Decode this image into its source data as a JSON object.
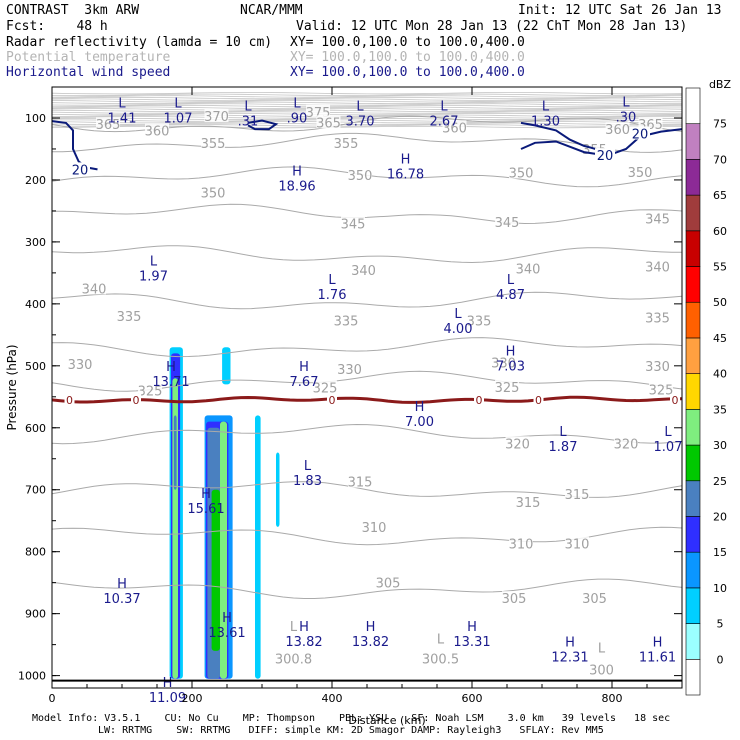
{
  "header": {
    "title_left": "CONTRAST  3km ARW",
    "title_center": "NCAR/MMM",
    "init": "Init: 12 UTC Sat 26 Jan 13",
    "fcst": "Fcst:    48 h",
    "valid": "Valid: 12 UTC Mon 28 Jan 13 (22 ChT Mon 28 Jan 13)",
    "fields": [
      {
        "label": "Radar reflectivity (lamda = 10 cm)",
        "xy": "XY= 100.0,100.0 to 100.0,400.0",
        "color": "#000000"
      },
      {
        "label": "Potential temperature",
        "xy": "XY= 100.0,100.0 to 100.0,400.0",
        "color": "#b4b4b4"
      },
      {
        "label": "Horizontal wind speed",
        "xy": "XY= 100.0,100.0 to 100.0,400.0",
        "color": "#1a1a8c"
      }
    ]
  },
  "footer": {
    "line1": "Model Info: V3.5.1    CU: No Cu    MP: Thompson    PBL: YSU    SF: Noah LSM    3.0 km   39 levels   18 sec",
    "line2": "LW: RRTMG    SW: RRTMG   DIFF: simple KM: 2D Smagor DAMP: Rayleigh3   SFLAY: Rev MM5"
  },
  "chart_data": {
    "type": "cross-section",
    "xlabel": "Distance (km)",
    "ylabel": "Pressure (hPa)",
    "xlim": [
      0,
      900
    ],
    "ylim": [
      1020,
      50
    ],
    "x_ticks": [
      0,
      200,
      400,
      600,
      800
    ],
    "y_ticks": [
      100,
      200,
      300,
      400,
      500,
      600,
      700,
      800,
      900,
      1000
    ],
    "colorbar": {
      "title": "dBZ",
      "levels": [
        0,
        5,
        10,
        15,
        20,
        25,
        30,
        35,
        40,
        45,
        50,
        55,
        60,
        65,
        70,
        75
      ],
      "colors": [
        "#ffffff",
        "#9bffff",
        "#00cfff",
        "#0a96ff",
        "#2f2fff",
        "#4a80c0",
        "#00c800",
        "#7fee7f",
        "#ffd700",
        "#ffa040",
        "#ff6000",
        "#ff0000",
        "#c80000",
        "#a03c3c",
        "#8c2a96",
        "#c080c0",
        "#ffffff"
      ]
    },
    "theta_contours": [
      {
        "value": "360",
        "p": 110
      },
      {
        "value": "355",
        "p": 140
      },
      {
        "value": "350",
        "p": 195
      },
      {
        "value": "345",
        "p": 255
      },
      {
        "value": "340",
        "p": 320
      },
      {
        "value": "335",
        "p": 395
      },
      {
        "value": "330",
        "p": 470
      },
      {
        "value": "325",
        "p": 525
      },
      {
        "value": "320",
        "p": 610
      },
      {
        "value": "315",
        "p": 700
      },
      {
        "value": "310",
        "p": 775
      },
      {
        "value": "305",
        "p": 860
      }
    ],
    "theta_labels": [
      {
        "text": "365",
        "x": 80,
        "p": 110
      },
      {
        "text": "360",
        "x": 150,
        "p": 120
      },
      {
        "text": "370",
        "x": 235,
        "p": 97
      },
      {
        "text": "375",
        "x": 380,
        "p": 90
      },
      {
        "text": "365",
        "x": 395,
        "p": 107
      },
      {
        "text": "360",
        "x": 575,
        "p": 115
      },
      {
        "text": "365",
        "x": 855,
        "p": 110
      },
      {
        "text": "360",
        "x": 808,
        "p": 118
      },
      {
        "text": "355",
        "x": 230,
        "p": 140
      },
      {
        "text": "355",
        "x": 420,
        "p": 140
      },
      {
        "text": "355",
        "x": 775,
        "p": 150
      },
      {
        "text": "350",
        "x": 230,
        "p": 220
      },
      {
        "text": "350",
        "x": 440,
        "p": 192
      },
      {
        "text": "350",
        "x": 670,
        "p": 188
      },
      {
        "text": "350",
        "x": 840,
        "p": 187
      },
      {
        "text": "345",
        "x": 430,
        "p": 270
      },
      {
        "text": "345",
        "x": 650,
        "p": 268
      },
      {
        "text": "345",
        "x": 865,
        "p": 262
      },
      {
        "text": "340",
        "x": 60,
        "p": 375
      },
      {
        "text": "340",
        "x": 445,
        "p": 345
      },
      {
        "text": "340",
        "x": 680,
        "p": 343
      },
      {
        "text": "340",
        "x": 865,
        "p": 340
      },
      {
        "text": "335",
        "x": 110,
        "p": 420
      },
      {
        "text": "335",
        "x": 420,
        "p": 427
      },
      {
        "text": "335",
        "x": 610,
        "p": 427
      },
      {
        "text": "335",
        "x": 865,
        "p": 422
      },
      {
        "text": "330",
        "x": 40,
        "p": 497
      },
      {
        "text": "330",
        "x": 425,
        "p": 505
      },
      {
        "text": "330",
        "x": 645,
        "p": 495
      },
      {
        "text": "330",
        "x": 865,
        "p": 500
      },
      {
        "text": "325",
        "x": 140,
        "p": 540
      },
      {
        "text": "325",
        "x": 390,
        "p": 535
      },
      {
        "text": "325",
        "x": 650,
        "p": 534
      },
      {
        "text": "325",
        "x": 870,
        "p": 538
      },
      {
        "text": "320",
        "x": 665,
        "p": 625
      },
      {
        "text": "320",
        "x": 820,
        "p": 625
      },
      {
        "text": "315",
        "x": 440,
        "p": 687
      },
      {
        "text": "315",
        "x": 680,
        "p": 720
      },
      {
        "text": "315",
        "x": 750,
        "p": 707
      },
      {
        "text": "310",
        "x": 460,
        "p": 760
      },
      {
        "text": "310",
        "x": 670,
        "p": 787
      },
      {
        "text": "310",
        "x": 750,
        "p": 787
      },
      {
        "text": "305",
        "x": 480,
        "p": 850
      },
      {
        "text": "305",
        "x": 660,
        "p": 875
      },
      {
        "text": "305",
        "x": 775,
        "p": 875
      }
    ],
    "surface_theta": [
      {
        "text": "L",
        "x": 345,
        "p": 920
      },
      {
        "text": "300.8",
        "x": 345,
        "p": 972
      },
      {
        "text": "L",
        "x": 555,
        "p": 940
      },
      {
        "text": "300.5",
        "x": 555,
        "p": 972
      },
      {
        "text": "L",
        "x": 785,
        "p": 955
      },
      {
        "text": "300",
        "x": 785,
        "p": 990
      }
    ],
    "freezing_level": {
      "value": "0",
      "label_x": [
        25,
        120,
        400,
        610,
        695,
        890
      ],
      "p": 555
    },
    "wind_contours": [
      {
        "value": "20",
        "label_x": 40,
        "label_p": 183
      },
      {
        "value": "20",
        "label_x": 790,
        "label_p": 160
      },
      {
        "value": "20",
        "label_x": 840,
        "label_p": 125
      }
    ],
    "extrema": [
      {
        "type": "L",
        "value": "1.41",
        "x": 100,
        "p": 80
      },
      {
        "type": "L",
        "value": "1.07",
        "x": 180,
        "p": 80
      },
      {
        "type": "L",
        "value": ".31",
        "x": 280,
        "p": 85
      },
      {
        "type": "L",
        "value": ".90",
        "x": 350,
        "p": 80
      },
      {
        "type": "L",
        "value": "3.70",
        "x": 440,
        "p": 85
      },
      {
        "type": "L",
        "value": "2.67",
        "x": 560,
        "p": 85
      },
      {
        "type": "L",
        "value": "1.30",
        "x": 705,
        "p": 85
      },
      {
        "type": "L",
        "value": ".30",
        "x": 820,
        "p": 78
      },
      {
        "type": "H",
        "value": "18.96",
        "x": 350,
        "p": 190
      },
      {
        "type": "H",
        "value": "16.78",
        "x": 505,
        "p": 170
      },
      {
        "type": "L",
        "value": "1.97",
        "x": 145,
        "p": 335
      },
      {
        "type": "L",
        "value": "1.76",
        "x": 400,
        "p": 365
      },
      {
        "type": "L",
        "value": "4.87",
        "x": 655,
        "p": 365
      },
      {
        "type": "L",
        "value": "4.00",
        "x": 580,
        "p": 420
      },
      {
        "type": "H",
        "value": "7.03",
        "x": 655,
        "p": 480
      },
      {
        "type": "H",
        "value": "13.71",
        "x": 170,
        "p": 505
      },
      {
        "type": "H",
        "value": "7.67",
        "x": 360,
        "p": 505
      },
      {
        "type": "H",
        "value": "7.00",
        "x": 525,
        "p": 570
      },
      {
        "type": "L",
        "value": "1.87",
        "x": 730,
        "p": 610
      },
      {
        "type": "L",
        "value": "1.07",
        "x": 880,
        "p": 610
      },
      {
        "type": "L",
        "value": "1.83",
        "x": 365,
        "p": 665
      },
      {
        "type": "H",
        "value": "15.61",
        "x": 220,
        "p": 710
      },
      {
        "type": "H",
        "value": "10.37",
        "x": 100,
        "p": 855
      },
      {
        "type": "H",
        "value": "13.61",
        "x": 250,
        "p": 910
      },
      {
        "type": "H",
        "value": "13.82",
        "x": 360,
        "p": 925
      },
      {
        "type": "H",
        "value": "13.82",
        "x": 455,
        "p": 925
      },
      {
        "type": "H",
        "value": "13.31",
        "x": 600,
        "p": 925
      },
      {
        "type": "H",
        "value": "12.31",
        "x": 740,
        "p": 950
      },
      {
        "type": "H",
        "value": "11.61",
        "x": 865,
        "p": 950
      },
      {
        "type": "H",
        "value": "11.09",
        "x": 165,
        "p": 1015
      }
    ],
    "reflectivity_cells": [
      {
        "x0": 168,
        "x1": 187,
        "p_top": 470,
        "p_bot": 1005,
        "dbz": 5
      },
      {
        "x0": 170,
        "x1": 183,
        "p_top": 480,
        "p_bot": 1005,
        "dbz": 15
      },
      {
        "x0": 172,
        "x1": 180,
        "p_top": 520,
        "p_bot": 1005,
        "dbz": 30
      },
      {
        "x0": 174,
        "x1": 178,
        "p_top": 580,
        "p_bot": 700,
        "dbz": 20
      },
      {
        "x0": 218,
        "x1": 258,
        "p_top": 580,
        "p_bot": 1005,
        "dbz": 10
      },
      {
        "x0": 220,
        "x1": 252,
        "p_top": 590,
        "p_bot": 1005,
        "dbz": 15
      },
      {
        "x0": 222,
        "x1": 240,
        "p_top": 600,
        "p_bot": 1005,
        "dbz": 20
      },
      {
        "x0": 228,
        "x1": 240,
        "p_top": 700,
        "p_bot": 960,
        "dbz": 25
      },
      {
        "x0": 240,
        "x1": 250,
        "p_top": 590,
        "p_bot": 1005,
        "dbz": 30
      },
      {
        "x0": 243,
        "x1": 255,
        "p_top": 470,
        "p_bot": 530,
        "dbz": 5
      },
      {
        "x0": 290,
        "x1": 298,
        "p_top": 580,
        "p_bot": 1005,
        "dbz": 5
      },
      {
        "x0": 320,
        "x1": 325,
        "p_top": 640,
        "p_bot": 760,
        "dbz": 5
      }
    ]
  }
}
